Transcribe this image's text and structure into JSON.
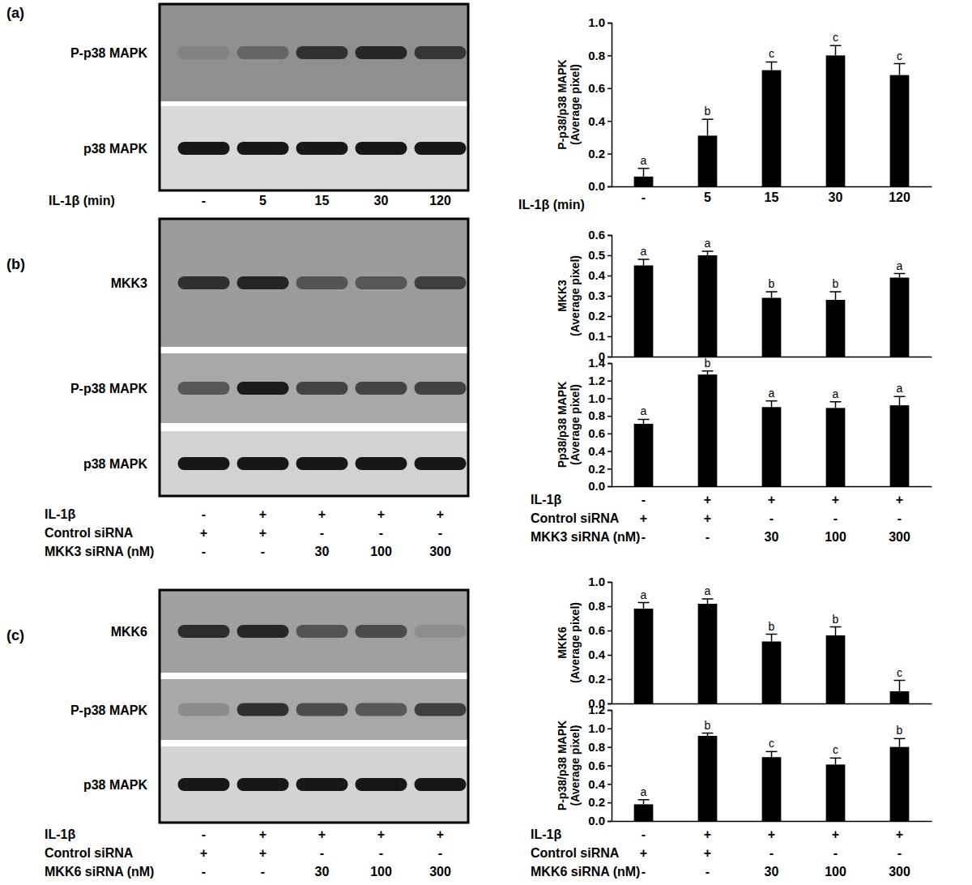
{
  "chart_data": [
    {
      "type": "bar",
      "panel": "(a)",
      "y_label": [
        "P-p38/p38 MAPK",
        "(Average pixel)"
      ],
      "x_label": "IL-1β (min)",
      "categories": [
        "-",
        "5",
        "15",
        "30",
        "120"
      ],
      "values": [
        0.06,
        0.31,
        0.71,
        0.8,
        0.68
      ],
      "errors": [
        0.05,
        0.1,
        0.05,
        0.06,
        0.07
      ],
      "significance": [
        "a",
        "b",
        "c",
        "c",
        "c"
      ],
      "color": "#000000",
      "ylim": [
        0,
        1
      ],
      "yticks": [
        {
          "value": 0,
          "label": "0.0"
        },
        0.2,
        0.4,
        0.6,
        0.8,
        {
          "value": 1,
          "label": "1.0"
        }
      ]
    },
    {
      "type": "bar",
      "panel": "(b)",
      "y_label": [
        "MKK3",
        "(Average pixel)"
      ],
      "values": [
        0.45,
        0.5,
        0.29,
        0.28,
        0.39
      ],
      "errors": [
        0.03,
        0.02,
        0.03,
        0.04,
        0.02
      ],
      "significance": [
        "a",
        "a",
        "b",
        "b",
        "a"
      ],
      "color": "#000000",
      "ylim": [
        0,
        0.6
      ],
      "yticks": [
        0,
        0.1,
        0.2,
        0.3,
        0.4,
        0.5,
        0.6
      ]
    },
    {
      "type": "bar",
      "panel": "(b)",
      "y_label": [
        "Pp38/p38 MAPK",
        "(Average pixel)"
      ],
      "conditions": [
        {
          "label": "IL-1β",
          "values": [
            "-",
            "+",
            "+",
            "+",
            "+"
          ]
        },
        {
          "label": "Control siRNA",
          "values": [
            "+",
            "+",
            "-",
            "-",
            "-"
          ]
        },
        {
          "label": "MKK3 siRNA (nM)",
          "values": [
            "-",
            "-",
            "30",
            "100",
            "300"
          ]
        }
      ],
      "values": [
        0.71,
        1.27,
        0.9,
        0.89,
        0.92
      ],
      "errors": [
        0.05,
        0.04,
        0.07,
        0.07,
        0.1
      ],
      "significance": [
        "a",
        "b",
        "a",
        "a",
        "a"
      ],
      "color": "#000000",
      "ylim": [
        0,
        1.4
      ],
      "yticks": [
        {
          "value": 0,
          "label": "0.0"
        },
        0.2,
        0.4,
        0.6,
        0.8,
        {
          "value": 1,
          "label": "1.0"
        },
        1.2,
        1.4
      ]
    },
    {
      "type": "bar",
      "panel": "(c)",
      "y_label": [
        "MKK6",
        "(Average pixel)"
      ],
      "values": [
        0.78,
        0.82,
        0.51,
        0.56,
        0.1
      ],
      "errors": [
        0.05,
        0.04,
        0.06,
        0.07,
        0.09
      ],
      "significance": [
        "a",
        "a",
        "b",
        "b",
        "c"
      ],
      "color": "#000000",
      "ylim": [
        0,
        1
      ],
      "yticks": [
        {
          "value": 0,
          "label": "0.0"
        },
        0.2,
        0.4,
        0.6,
        0.8,
        {
          "value": 1,
          "label": "1.0"
        }
      ]
    },
    {
      "type": "bar",
      "panel": "(c)",
      "y_label": [
        "P-p38/p38 MAPK",
        "(Average pixel)"
      ],
      "conditions": [
        {
          "label": "IL-1β",
          "values": [
            "-",
            "+",
            "+",
            "+",
            "+"
          ]
        },
        {
          "label": "Control siRNA",
          "values": [
            "+",
            "+",
            "-",
            "-",
            "-"
          ]
        },
        {
          "label": "MKK6 siRNA (nM)",
          "values": [
            "-",
            "-",
            "30",
            "100",
            "300"
          ]
        }
      ],
      "values": [
        0.18,
        0.92,
        0.69,
        0.61,
        0.8
      ],
      "errors": [
        0.05,
        0.03,
        0.06,
        0.07,
        0.09
      ],
      "significance": [
        "a",
        "b",
        "c",
        "c",
        "b"
      ],
      "color": "#000000",
      "ylim": [
        0,
        1.2
      ],
      "yticks": [
        {
          "value": 0,
          "label": "0.0"
        },
        0.2,
        0.4,
        0.6,
        0.8,
        {
          "value": 1,
          "label": "1.0"
        },
        1.2
      ]
    }
  ],
  "panels": [
    {
      "label": "(a)",
      "blot_rows": [
        "P-p38 MAPK",
        "p38 MAPK"
      ]
    },
    {
      "label": "(b)",
      "blot_rows": [
        "MKK3",
        "P-p38 MAPK",
        "p38 MAPK"
      ]
    },
    {
      "label": "(c)",
      "blot_rows": [
        "MKK6",
        "P-p38 MAPK",
        "p38 MAPK"
      ]
    }
  ]
}
